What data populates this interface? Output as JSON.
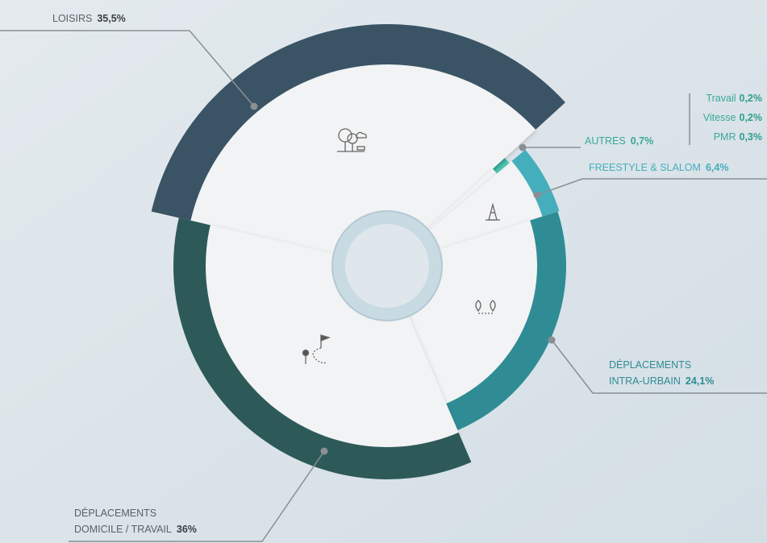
{
  "chart_data": {
    "type": "pie",
    "categories": [
      "LOISIRS",
      "AUTRES",
      "FREESTYLE & SLALOM",
      "DÉPLACEMENTS INTRA-URBAIN",
      "DÉPLACEMENTS DOMICILE / TRAVAIL"
    ],
    "values": [
      35.5,
      0.7,
      6.4,
      24.1,
      36
    ],
    "value_labels": [
      "35,5%",
      "0,7%",
      "6,4%",
      "24,1%",
      "36%"
    ],
    "colors": [
      "#3a5465",
      "#3aa79a",
      "#45aebd",
      "#2f8c95",
      "#2d5a58"
    ],
    "autres_detail": {
      "categories": [
        "Travail",
        "Vitesse",
        "PMR"
      ],
      "values": [
        0.2,
        0.2,
        0.3
      ],
      "value_labels": [
        "0,2%",
        "0,2%",
        "0,3%"
      ],
      "colors": [
        "#2f9e8f",
        "#3fb3a2",
        "#56c2b0"
      ]
    }
  }
}
